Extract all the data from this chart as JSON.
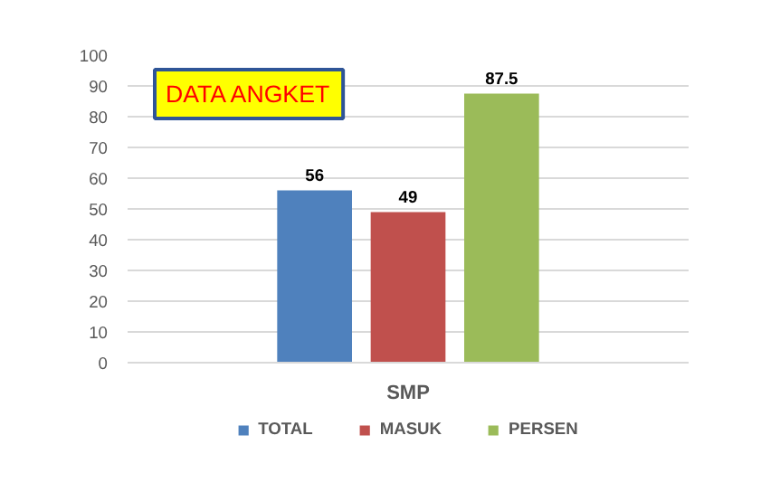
{
  "chart_data": {
    "type": "bar",
    "title": "DATA ANGKET",
    "categories": [
      "SMP"
    ],
    "series": [
      {
        "name": "TOTAL",
        "color": "#4f81bd",
        "values": [
          56
        ]
      },
      {
        "name": "MASUK",
        "color": "#c0504d",
        "values": [
          49
        ]
      },
      {
        "name": "PERSEN",
        "color": "#9bbb59",
        "values": [
          87.5
        ]
      }
    ],
    "ylim": [
      0,
      100
    ],
    "yticks": [
      0,
      10,
      20,
      30,
      40,
      50,
      60,
      70,
      80,
      90,
      100
    ],
    "grid": "y",
    "legend": "bottom",
    "data_labels": true
  }
}
